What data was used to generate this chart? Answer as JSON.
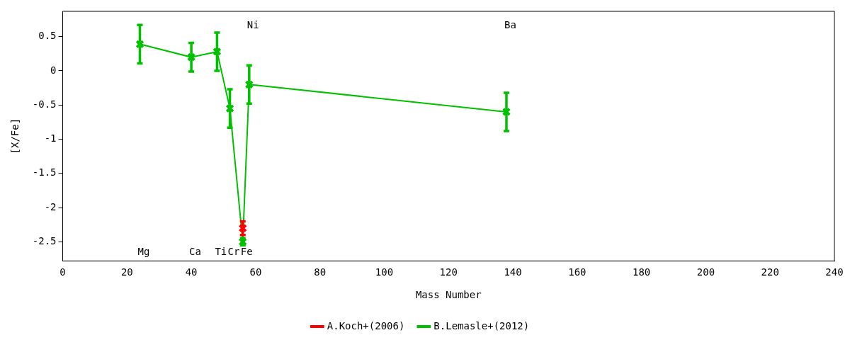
{
  "chart_data": {
    "type": "line",
    "xlabel": "Mass Number",
    "ylabel": "[X/Fe]",
    "xlim": [
      0,
      240
    ],
    "xticks": [
      0,
      20,
      40,
      60,
      80,
      100,
      120,
      140,
      160,
      180,
      200,
      220,
      240
    ],
    "ylim": [
      -2.78,
      0.87
    ],
    "yticks": [
      -2.5,
      -2,
      -1.5,
      -1,
      -0.5,
      0,
      0.5
    ],
    "series": [
      {
        "name": "A.Koch+(2006)",
        "color": "#ff0000",
        "x": [
          56
        ],
        "values": [
          -2.3
        ],
        "errors": [
          0.1
        ]
      },
      {
        "name": "B.Lemasle+(2012)",
        "color": "#00c000",
        "x": [
          24,
          40,
          48,
          52,
          56,
          58,
          138
        ],
        "values": [
          0.39,
          0.2,
          0.28,
          -0.55,
          -2.5,
          -0.2,
          -0.6
        ],
        "errors": [
          0.28,
          0.21,
          0.28,
          0.28,
          0.05,
          0.28,
          0.28
        ]
      }
    ],
    "annotations": [
      "Mg",
      "Ca",
      "Ti",
      "Cr",
      "Fe",
      "Ni",
      "Ba"
    ],
    "grid": false,
    "legend": "bottom",
    "marker": "cross"
  }
}
